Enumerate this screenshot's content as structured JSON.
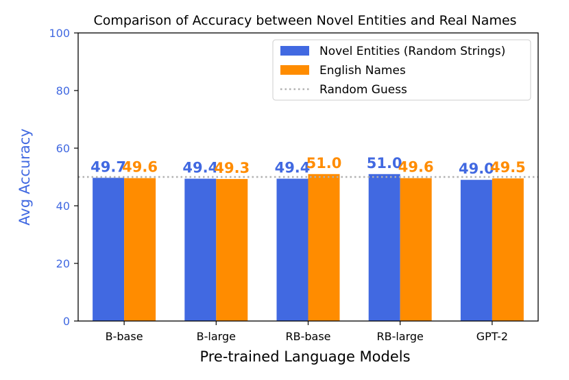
{
  "chart_data": {
    "type": "bar",
    "title": "Comparison of Accuracy between Novel Entities and Real Names",
    "xlabel": "Pre-trained Language Models",
    "ylabel": "Avg Accuracy",
    "categories": [
      "B-base",
      "B-large",
      "RB-base",
      "RB-large",
      "GPT-2"
    ],
    "series": [
      {
        "name": "Novel Entities (Random Strings)",
        "values": [
          49.7,
          49.4,
          49.4,
          51.0,
          49.0
        ],
        "color": "#4169E1"
      },
      {
        "name": "English Names",
        "values": [
          49.6,
          49.3,
          51.0,
          49.6,
          49.5
        ],
        "color": "#FF8C00"
      }
    ],
    "reference_line": {
      "name": "Random Guess",
      "value": 50,
      "color": "#B0B0B0",
      "style": "dotted"
    },
    "ylim": [
      0,
      100
    ],
    "yticks": [
      0,
      20,
      40,
      60,
      80,
      100
    ],
    "ylabel_color": "#4169E1",
    "legend_position": "top-right",
    "grid": false
  }
}
